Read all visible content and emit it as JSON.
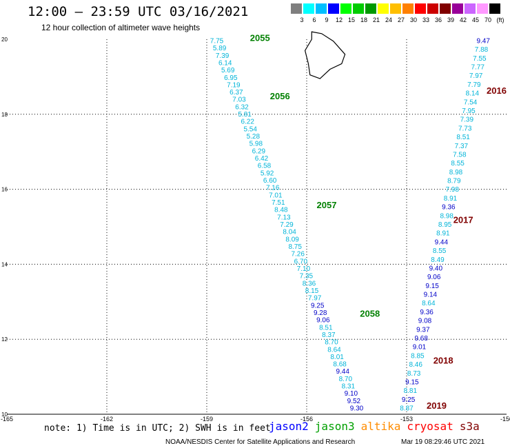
{
  "title": "12:00 – 23:59 UTC 03/16/2021",
  "subtitle": "12 hour collection of altimeter wave heights",
  "colorbar": {
    "labels": [
      "3",
      "6",
      "9",
      "12",
      "15",
      "18",
      "21",
      "24",
      "27",
      "30",
      "33",
      "36",
      "39",
      "42",
      "45",
      "70",
      "(ft)"
    ],
    "colors": [
      "#7f7f7f",
      "#00ffff",
      "#00bfff",
      "#0000ff",
      "#00ff00",
      "#00cc00",
      "#009900",
      "#ffff00",
      "#ffbf00",
      "#ff8000",
      "#ff0000",
      "#cc0000",
      "#800000",
      "#990099",
      "#cc66ff",
      "#ff99ff",
      "#000000"
    ]
  },
  "colors": {
    "cyan": "#00b4d8",
    "navy": "#0000c8",
    "green": "#008000",
    "darkred": "#800000",
    "grid": "#000000"
  },
  "map": {
    "x_ticks": [
      "-165",
      "-162",
      "-159",
      "-156",
      "-153",
      "-150"
    ],
    "y_ticks": [
      "10",
      "12",
      "14",
      "16",
      "18",
      "20"
    ],
    "lon_range": [
      -165,
      -150
    ],
    "lat_range": [
      10,
      20
    ]
  },
  "tracks": [
    {
      "start": [
        -158.7,
        19.9
      ],
      "end": [
        -154.5,
        10.1
      ],
      "values": [
        "7.75",
        "5.89",
        "7.39",
        "6.14",
        "5.69",
        "6.95",
        "7.19",
        "6.37",
        "7.03",
        "6.32",
        "5.81",
        "6.22",
        "5.54",
        "5.28",
        "5.98",
        "6.29",
        "6.42",
        "6.58",
        "5.92",
        "6.60",
        "7.16",
        "7.01",
        "7.51",
        "8.48",
        "7.13",
        "7.29",
        "8.04",
        "8.09",
        "8.75",
        "7.26",
        "6.70",
        "7.10",
        "7.35",
        "8.36",
        "8.15",
        "7.97",
        "9.25",
        "9.28",
        "9.06",
        "8.51",
        "8.37",
        "8.70",
        "8.64",
        "8.01",
        "8.68",
        "9.44",
        "8.70",
        "8.31",
        "9.10",
        "9.52",
        "9.30"
      ],
      "colors": [
        "c",
        "c",
        "c",
        "c",
        "c",
        "c",
        "c",
        "c",
        "c",
        "c",
        "c",
        "c",
        "c",
        "c",
        "c",
        "c",
        "c",
        "c",
        "c",
        "c",
        "c",
        "c",
        "c",
        "c",
        "c",
        "c",
        "c",
        "c",
        "c",
        "c",
        "c",
        "c",
        "c",
        "c",
        "c",
        "c",
        "n",
        "n",
        "n",
        "c",
        "c",
        "c",
        "c",
        "c",
        "c",
        "n",
        "c",
        "c",
        "n",
        "n",
        "n"
      ]
    },
    {
      "start": [
        -150.7,
        19.9
      ],
      "end": [
        -153.0,
        10.1
      ],
      "values": [
        "9.47",
        "7.88",
        "7.55",
        "7.77",
        "7.97",
        "7.79",
        "8.14",
        "7.54",
        "7.95",
        "7.39",
        "7.73",
        "8.51",
        "7.37",
        "7.58",
        "8.55",
        "8.98",
        "8.79",
        "7.98",
        "8.91",
        "9.36",
        "8.98",
        "8.95",
        "8.91",
        "9.44",
        "8.55",
        "8.49",
        "9.40",
        "9.06",
        "9.15",
        "9.14",
        "8.64",
        "9.36",
        "9.08",
        "9.37",
        "9.68",
        "9.01",
        "8.85",
        "8.46",
        "8.73",
        "9.15",
        "8.81",
        "9.25",
        "8.87"
      ],
      "colors": [
        "n",
        "c",
        "c",
        "c",
        "c",
        "c",
        "c",
        "c",
        "c",
        "c",
        "c",
        "c",
        "c",
        "c",
        "c",
        "c",
        "c",
        "c",
        "c",
        "n",
        "c",
        "c",
        "c",
        "n",
        "c",
        "c",
        "n",
        "n",
        "n",
        "n",
        "c",
        "n",
        "n",
        "n",
        "n",
        "n",
        "c",
        "c",
        "c",
        "n",
        "c",
        "n",
        "c"
      ]
    }
  ],
  "track_labels": [
    {
      "text": "2055",
      "lon": -157.7,
      "lat": 19.95,
      "color": "green"
    },
    {
      "text": "2056",
      "lon": -157.1,
      "lat": 18.4,
      "color": "green"
    },
    {
      "text": "2057",
      "lon": -155.7,
      "lat": 15.5,
      "color": "green"
    },
    {
      "text": "2058",
      "lon": -154.4,
      "lat": 12.6,
      "color": "green"
    },
    {
      "text": "2016",
      "lon": -150.6,
      "lat": 18.55,
      "color": "darkred"
    },
    {
      "text": "2017",
      "lon": -151.6,
      "lat": 15.1,
      "color": "darkred"
    },
    {
      "text": "2018",
      "lon": -152.2,
      "lat": 11.35,
      "color": "darkred"
    },
    {
      "text": "2019",
      "lon": -152.4,
      "lat": 10.15,
      "color": "darkred"
    }
  ],
  "note": "note: 1) Time is in UTC; 2) SWH is in feet",
  "satellites": [
    {
      "name": "jason2",
      "color": "#0000ff"
    },
    {
      "name": "jason3",
      "color": "#00a000"
    },
    {
      "name": "altika",
      "color": "#ff8c00"
    },
    {
      "name": "cryosat",
      "color": "#ff0000"
    },
    {
      "name": "s3a",
      "color": "#800000"
    }
  ],
  "footer": {
    "center": "NOAA/NESDIS Center for Satellite Applications and Research",
    "time": "Mar 19 08:29:46 UTC 2021"
  }
}
